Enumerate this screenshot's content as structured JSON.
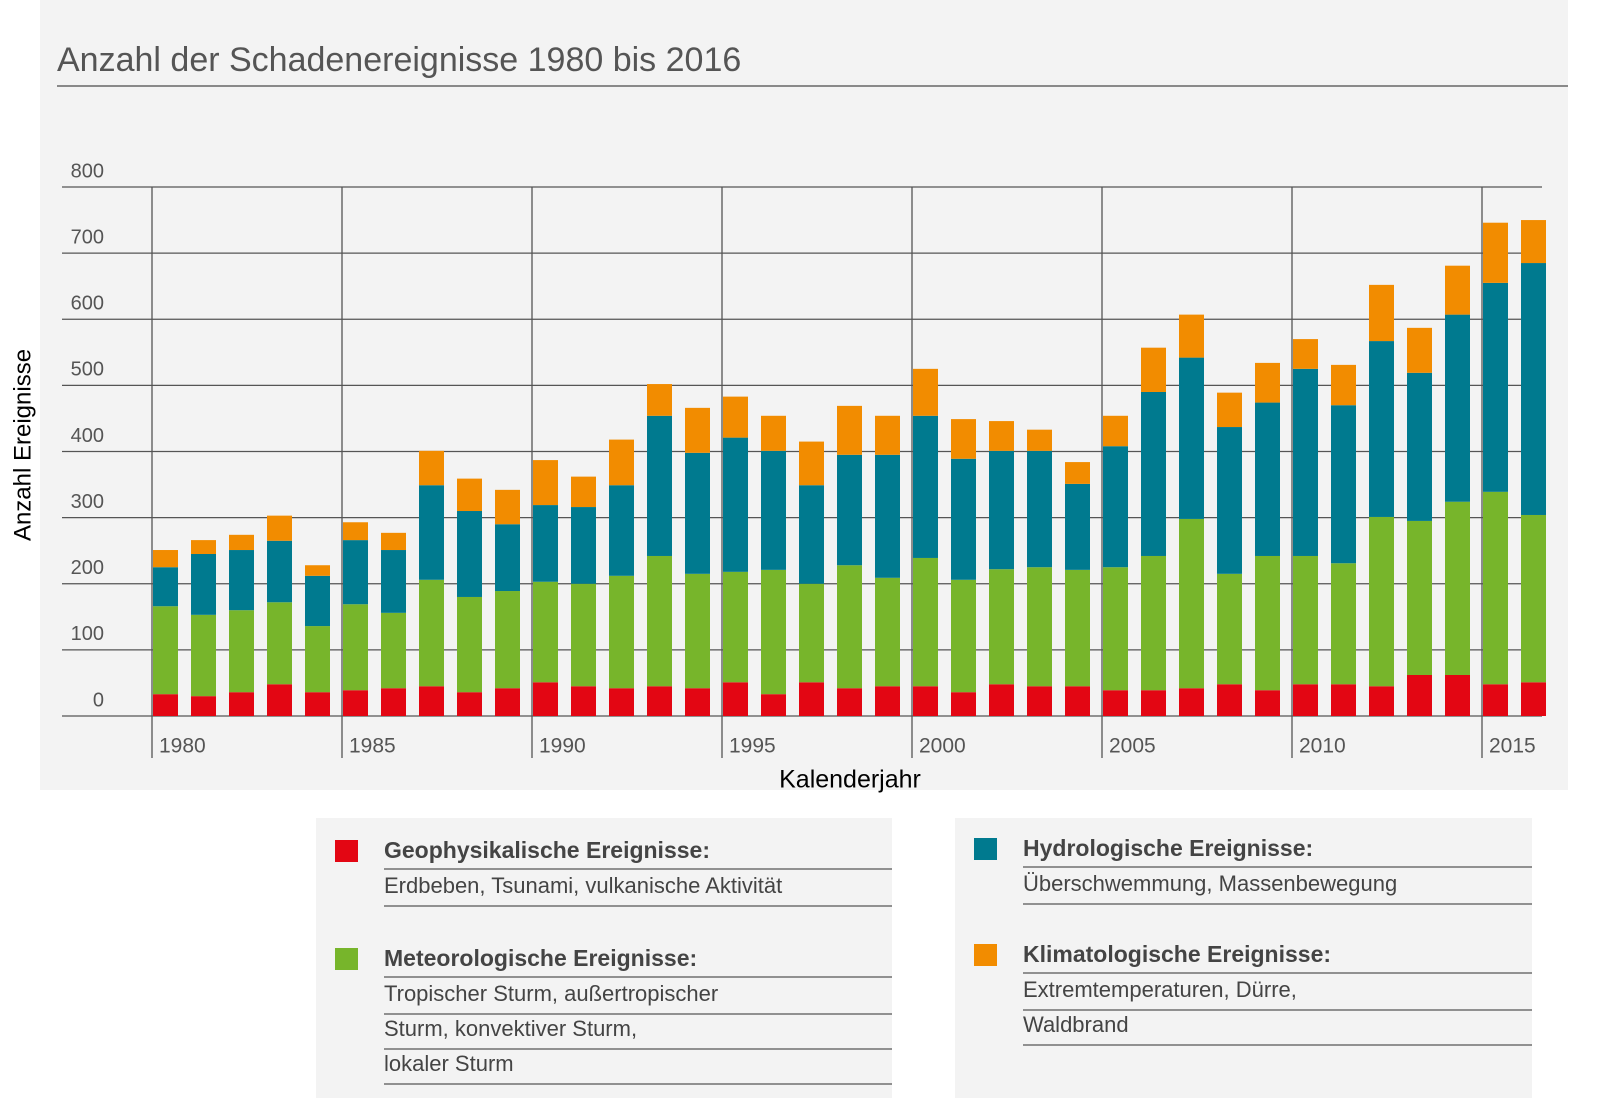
{
  "chart_data": {
    "type": "stacked-bar",
    "title": "Anzahl der Schadenereignisse 1980 bis 2016",
    "ylabel": "Anzahl Ereignisse",
    "xlabel": "Kalenderjahr",
    "categories": [
      "1980",
      null,
      null,
      null,
      null,
      "1985",
      null,
      null,
      null,
      null,
      "1990",
      null,
      null,
      null,
      null,
      "1995",
      null,
      null,
      null,
      null,
      "2000",
      null,
      null,
      null,
      null,
      "2005",
      null,
      null,
      null,
      null,
      "2010",
      null,
      null,
      null,
      null,
      "2015",
      null
    ],
    "ylim": [
      0,
      800
    ],
    "yticks": [
      0,
      100,
      200,
      300,
      400,
      500,
      600,
      700,
      800
    ],
    "grid": true,
    "series": [
      {
        "name": "Geophysikalische Ereignisse:",
        "color": "#e30613",
        "description": [
          "Erdbeben, Tsunami, vulkanische Aktivität"
        ],
        "values": [
          33,
          30,
          36,
          48,
          36,
          39,
          42,
          45,
          36,
          42,
          51,
          45,
          42,
          45,
          42,
          51,
          33,
          51,
          42,
          45,
          45,
          36,
          48,
          45,
          45,
          39,
          39,
          42,
          48,
          39,
          48,
          48,
          45,
          62,
          62,
          48,
          51
        ]
      },
      {
        "name": "Meteorologische Ereignisse:",
        "color": "#77b52b",
        "description": [
          "Tropischer Sturm, außertropischer",
          "Sturm, konvektiver Sturm,",
          "lokaler Sturm"
        ],
        "values": [
          133,
          123,
          124,
          124,
          100,
          130,
          114,
          161,
          144,
          147,
          152,
          155,
          170,
          197,
          173,
          167,
          188,
          149,
          186,
          164,
          194,
          170,
          174,
          180,
          176,
          186,
          203,
          256,
          167,
          203,
          194,
          183,
          256,
          233,
          262,
          291,
          253
        ]
      },
      {
        "name": "Hydrologische Ereignisse:",
        "color": "#007a8f",
        "description": [
          "Überschwemmung, Massenbewegung"
        ],
        "values": [
          59,
          92,
          91,
          93,
          76,
          97,
          95,
          143,
          130,
          101,
          116,
          116,
          137,
          212,
          183,
          203,
          180,
          149,
          167,
          186,
          215,
          183,
          179,
          176,
          130,
          183,
          248,
          244,
          222,
          232,
          283,
          239,
          266,
          224,
          283,
          316,
          381
        ]
      },
      {
        "name": "Klimatologische Ereignisse:",
        "color": "#f28c00",
        "description": [
          "Extremtemperaturen, Dürre,",
          "Waldbrand"
        ],
        "values": [
          26,
          21,
          23,
          38,
          16,
          27,
          26,
          52,
          49,
          52,
          68,
          46,
          69,
          48,
          68,
          62,
          53,
          66,
          74,
          59,
          71,
          60,
          45,
          32,
          33,
          46,
          67,
          65,
          52,
          60,
          45,
          61,
          85,
          68,
          74,
          91,
          65
        ]
      }
    ]
  }
}
